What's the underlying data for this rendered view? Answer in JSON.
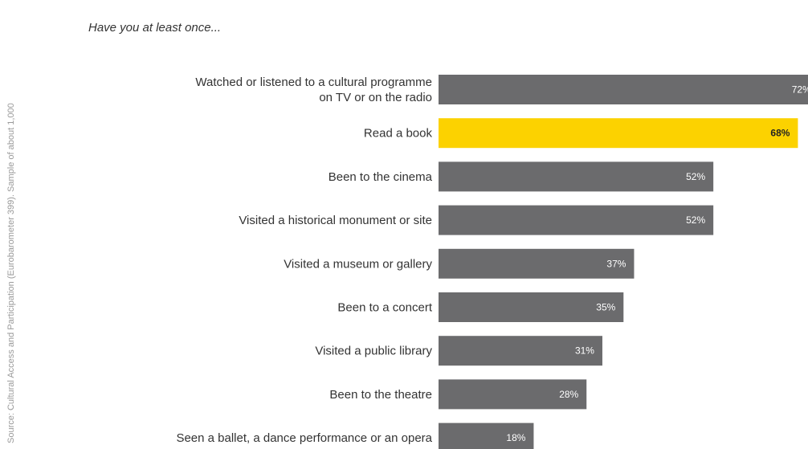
{
  "source_note": "Source: Cultural Access and Participation (Eurobarometer 399). Sample of about 1,000",
  "subtitle": "Have you at least once...",
  "colors": {
    "bar": "#6b6b6d",
    "highlight": "#fcd200",
    "label_light": "#ffffff",
    "label_dark": "#222222",
    "category_text": "#333333"
  },
  "chart_data": {
    "type": "bar",
    "orientation": "horizontal",
    "title": "",
    "xlabel": "",
    "ylabel": "",
    "xlim": [
      0,
      100
    ],
    "value_suffix": "%",
    "highlight_category": "Read a book",
    "categories": [
      [
        "Watched or listened to a cultural programme",
        "on TV or on the radio"
      ],
      [
        "Read a book"
      ],
      [
        "Been to the cinema"
      ],
      [
        "Visited a historical monument or site"
      ],
      [
        "Visited a museum or gallery"
      ],
      [
        "Been to a concert"
      ],
      [
        "Visited a public library"
      ],
      [
        "Been to the theatre"
      ],
      [
        "Seen a ballet, a dance performance or an opera"
      ]
    ],
    "values": [
      72,
      68,
      52,
      52,
      37,
      35,
      31,
      28,
      18
    ],
    "labels": [
      "72%",
      "68%",
      "52%",
      "52%",
      "37%",
      "35%",
      "31%",
      "28%",
      "18%"
    ]
  }
}
